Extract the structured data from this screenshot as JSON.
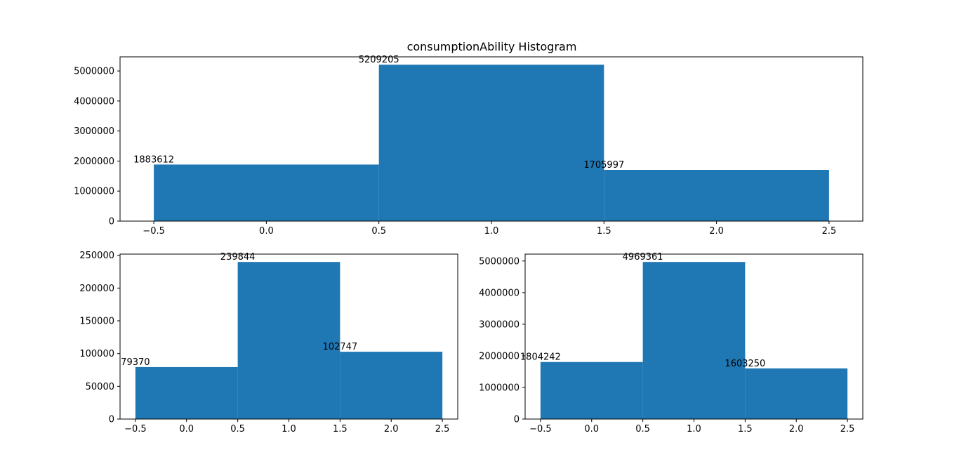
{
  "chart_data": [
    {
      "type": "bar",
      "title": "consumptionAbility Histogram",
      "xlabel": "",
      "ylabel": "",
      "bins": [
        [
          -0.5,
          0.5
        ],
        [
          0.5,
          1.5
        ],
        [
          1.5,
          2.5
        ]
      ],
      "values": [
        1883612,
        5209205,
        1705997
      ],
      "value_labels": [
        "1883612",
        "5209205",
        "1705997"
      ],
      "xlim": [
        -0.65,
        2.65
      ],
      "ylim": [
        0,
        5469665
      ],
      "xticks": [
        -0.5,
        0.0,
        0.5,
        1.0,
        1.5,
        2.0,
        2.5
      ],
      "xtick_labels": [
        "−0.5",
        "0.0",
        "0.5",
        "1.0",
        "1.5",
        "2.0",
        "2.5"
      ],
      "yticks": [
        0,
        1000000,
        2000000,
        3000000,
        4000000,
        5000000
      ],
      "ytick_labels": [
        "0",
        "1000000",
        "2000000",
        "3000000",
        "4000000",
        "5000000"
      ],
      "bar_color": "#1f77b4",
      "grid": false
    },
    {
      "type": "bar",
      "title": "",
      "xlabel": "",
      "ylabel": "",
      "bins": [
        [
          -0.5,
          0.5
        ],
        [
          0.5,
          1.5
        ],
        [
          1.5,
          2.5
        ]
      ],
      "values": [
        79370,
        239844,
        102747
      ],
      "value_labels": [
        "79370",
        "239844",
        "102747"
      ],
      "xlim": [
        -0.65,
        2.65
      ],
      "ylim": [
        0,
        251836
      ],
      "xticks": [
        -0.5,
        0.0,
        0.5,
        1.0,
        1.5,
        2.0,
        2.5
      ],
      "xtick_labels": [
        "−0.5",
        "0.0",
        "0.5",
        "1.0",
        "1.5",
        "2.0",
        "2.5"
      ],
      "yticks": [
        0,
        50000,
        100000,
        150000,
        200000,
        250000
      ],
      "ytick_labels": [
        "0",
        "50000",
        "100000",
        "150000",
        "200000",
        "250000"
      ],
      "bar_color": "#1f77b4",
      "grid": false
    },
    {
      "type": "bar",
      "title": "",
      "xlabel": "",
      "ylabel": "",
      "bins": [
        [
          -0.5,
          0.5
        ],
        [
          0.5,
          1.5
        ],
        [
          1.5,
          2.5
        ]
      ],
      "values": [
        1804242,
        4969361,
        1603250
      ],
      "value_labels": [
        "1804242",
        "4969361",
        "1603250"
      ],
      "xlim": [
        -0.65,
        2.65
      ],
      "ylim": [
        0,
        5217829
      ],
      "xticks": [
        -0.5,
        0.0,
        0.5,
        1.0,
        1.5,
        2.0,
        2.5
      ],
      "xtick_labels": [
        "−0.5",
        "0.0",
        "0.5",
        "1.0",
        "1.5",
        "2.0",
        "2.5"
      ],
      "yticks": [
        0,
        1000000,
        2000000,
        3000000,
        4000000,
        5000000
      ],
      "ytick_labels": [
        "0",
        "1000000",
        "2000000",
        "3000000",
        "4000000",
        "5000000"
      ],
      "bar_color": "#1f77b4",
      "grid": false
    }
  ]
}
